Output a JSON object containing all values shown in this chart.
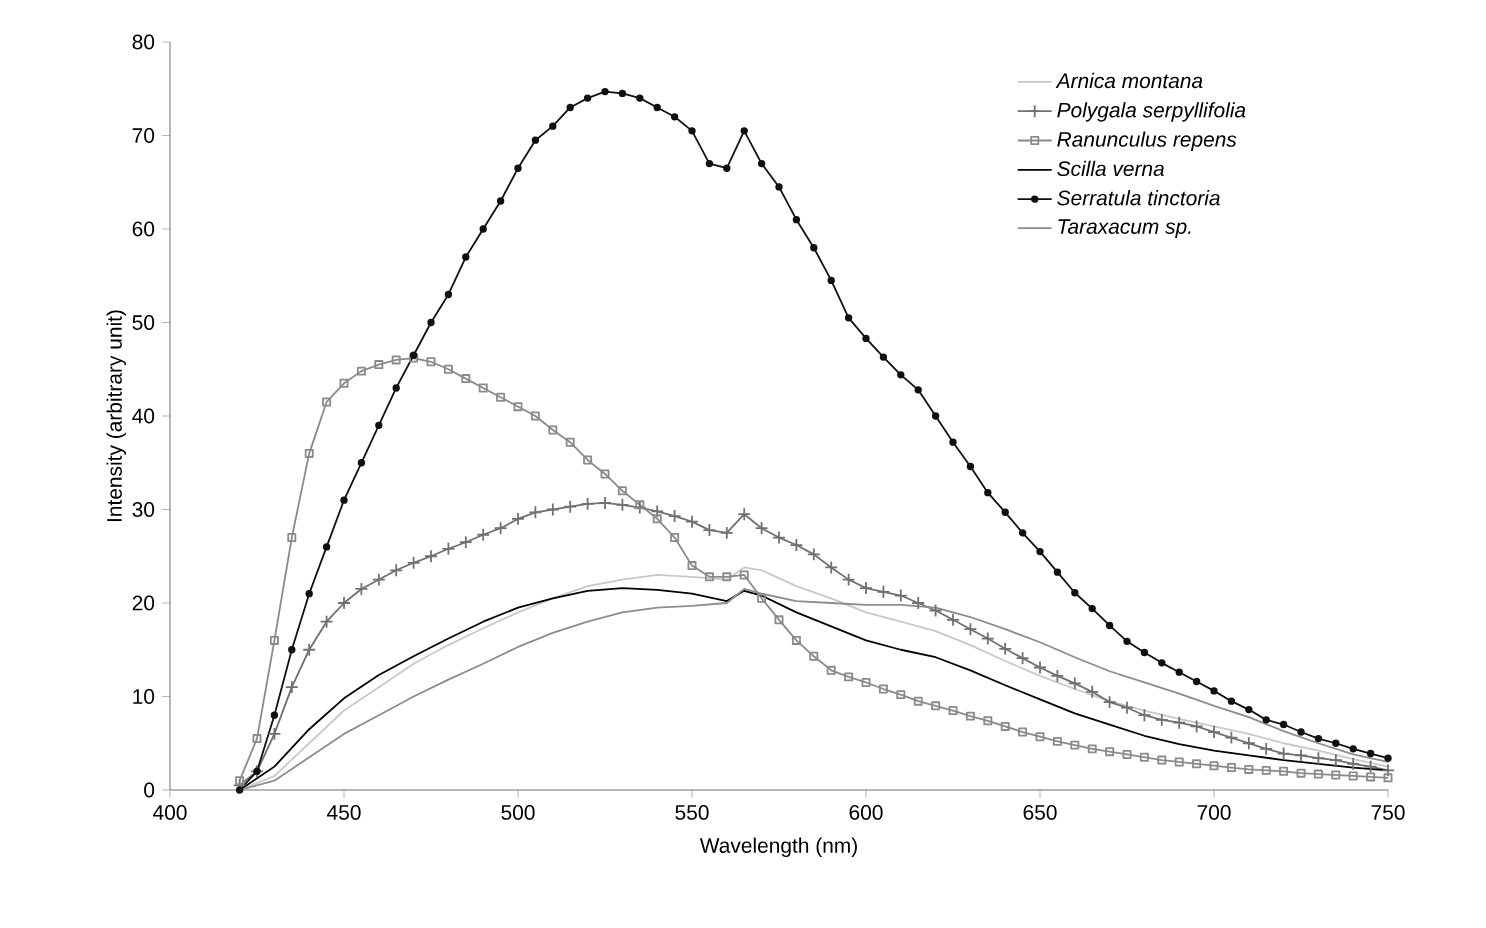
{
  "chart_data": {
    "type": "line",
    "xlabel": "Wavelength (nm)",
    "ylabel": "Intensity (arbitrary unit)",
    "xlim": [
      400,
      750
    ],
    "ylim": [
      0,
      80
    ],
    "xticks": [
      400,
      450,
      500,
      550,
      600,
      650,
      700,
      750
    ],
    "yticks": [
      0,
      10,
      20,
      30,
      40,
      50,
      60,
      70,
      80
    ],
    "grid": false,
    "legend": "top right",
    "line_style": "solid",
    "x": [
      420,
      425,
      430,
      435,
      440,
      445,
      450,
      455,
      460,
      465,
      470,
      475,
      480,
      485,
      490,
      495,
      500,
      505,
      510,
      515,
      520,
      525,
      530,
      535,
      540,
      545,
      550,
      555,
      560,
      565,
      570,
      575,
      580,
      585,
      590,
      595,
      600,
      605,
      610,
      615,
      620,
      625,
      630,
      635,
      640,
      645,
      650,
      655,
      660,
      665,
      670,
      675,
      680,
      685,
      690,
      695,
      700,
      705,
      710,
      715,
      720,
      725,
      730,
      735,
      740,
      745,
      750
    ],
    "series": [
      {
        "name": "Arnica montana",
        "color": "#c8c8c8",
        "marker": "none",
        "x": [
          420,
          430,
          440,
          450,
          460,
          470,
          480,
          490,
          500,
          510,
          520,
          530,
          540,
          550,
          560,
          565,
          570,
          580,
          590,
          600,
          610,
          620,
          630,
          640,
          650,
          660,
          670,
          680,
          690,
          700,
          710,
          720,
          730,
          740,
          750
        ],
        "values": [
          0,
          1.5,
          5,
          8.5,
          11,
          13.5,
          15.5,
          17.3,
          19,
          20.5,
          21.8,
          22.5,
          23,
          22.8,
          22.5,
          23.8,
          23.5,
          21.8,
          20.5,
          19,
          18,
          17,
          15.5,
          13.8,
          12.2,
          10.8,
          9.5,
          8.5,
          7.6,
          6.8,
          6,
          5,
          4.2,
          3.3,
          2.5
        ]
      },
      {
        "name": "Polygala serpyllifolia",
        "color": "#707070",
        "marker": "cross",
        "values": [
          0.5,
          2,
          6,
          11,
          15,
          18,
          20,
          21.5,
          22.5,
          23.5,
          24.3,
          25,
          25.8,
          26.5,
          27.3,
          28,
          29,
          29.7,
          30,
          30.3,
          30.6,
          30.7,
          30.5,
          30.2,
          29.8,
          29.3,
          28.7,
          27.8,
          27.5,
          29.5,
          28,
          27,
          26.2,
          25.2,
          23.8,
          22.5,
          21.6,
          21.2,
          20.8,
          20,
          19.2,
          18.2,
          17.2,
          16.2,
          15.1,
          14.1,
          13.1,
          12.2,
          11.4,
          10.5,
          9.4,
          8.8,
          8,
          7.5,
          7.2,
          6.8,
          6.2,
          5.6,
          5,
          4.4,
          3.9,
          3.7,
          3.4,
          3.2,
          2.8,
          2.5,
          2.1
        ]
      },
      {
        "name": "Ranunculus repens",
        "color": "#8a8a8a",
        "marker": "square",
        "values": [
          1,
          5.5,
          16,
          27,
          36,
          41.5,
          43.5,
          44.8,
          45.5,
          46,
          46.2,
          45.8,
          45,
          44,
          43,
          42,
          41,
          40,
          38.5,
          37.2,
          35.3,
          33.8,
          32,
          30.5,
          29,
          27,
          24,
          22.8,
          22.8,
          23,
          20.5,
          18.2,
          16,
          14.3,
          12.8,
          12.1,
          11.5,
          10.8,
          10.2,
          9.5,
          9,
          8.5,
          7.9,
          7.4,
          6.8,
          6.2,
          5.7,
          5.2,
          4.8,
          4.4,
          4.1,
          3.8,
          3.5,
          3.2,
          3,
          2.8,
          2.6,
          2.4,
          2.2,
          2.1,
          2,
          1.8,
          1.7,
          1.6,
          1.5,
          1.4,
          1.3
        ]
      },
      {
        "name": "Scilla verna",
        "color": "#000000",
        "marker": "none",
        "x": [
          420,
          430,
          440,
          450,
          460,
          470,
          480,
          490,
          500,
          510,
          520,
          530,
          540,
          550,
          560,
          565,
          570,
          580,
          590,
          600,
          610,
          620,
          630,
          640,
          650,
          660,
          670,
          680,
          690,
          700,
          710,
          720,
          730,
          740,
          750
        ],
        "values": [
          0,
          2.5,
          6.5,
          9.8,
          12.3,
          14.3,
          16.2,
          18,
          19.5,
          20.5,
          21.3,
          21.6,
          21.4,
          21,
          20.2,
          21.3,
          20.8,
          19,
          17.5,
          16,
          15,
          14.2,
          12.8,
          11.2,
          9.7,
          8.2,
          7,
          5.8,
          4.9,
          4.2,
          3.7,
          3.2,
          2.8,
          2.4,
          2.1
        ]
      },
      {
        "name": "Serratula tinctoria",
        "color": "#101010",
        "marker": "circle",
        "values": [
          0,
          2,
          8,
          15,
          21,
          26,
          31,
          35,
          39,
          43,
          46.5,
          50,
          53,
          57,
          60,
          63,
          66.5,
          69.5,
          71,
          73,
          74,
          74.7,
          74.5,
          74,
          73,
          72,
          70.5,
          67,
          66.5,
          70.5,
          67,
          64.5,
          61,
          58,
          54.5,
          50.5,
          48.3,
          46.3,
          44.4,
          42.8,
          40,
          37.2,
          34.6,
          31.8,
          29.7,
          27.5,
          25.5,
          23.3,
          21.1,
          19.4,
          17.6,
          15.9,
          14.7,
          13.6,
          12.6,
          11.6,
          10.6,
          9.5,
          8.6,
          7.5,
          7,
          6.2,
          5.5,
          5,
          4.4,
          3.9,
          3.4
        ]
      },
      {
        "name": "Taraxacum sp.",
        "color": "#8c8c8c",
        "marker": "none",
        "x": [
          420,
          430,
          440,
          450,
          460,
          470,
          480,
          490,
          500,
          510,
          520,
          530,
          540,
          550,
          560,
          565,
          570,
          580,
          590,
          600,
          610,
          620,
          630,
          640,
          650,
          660,
          670,
          680,
          690,
          700,
          710,
          720,
          730,
          740,
          750
        ],
        "values": [
          0,
          1,
          3.5,
          6,
          8,
          10,
          11.8,
          13.5,
          15.3,
          16.8,
          18,
          19,
          19.5,
          19.7,
          20,
          21.5,
          21,
          20.2,
          20,
          19.8,
          19.8,
          19.5,
          18.5,
          17.2,
          15.8,
          14.2,
          12.7,
          11.5,
          10.3,
          9,
          7.8,
          6.3,
          5,
          3.8,
          3
        ]
      }
    ]
  }
}
